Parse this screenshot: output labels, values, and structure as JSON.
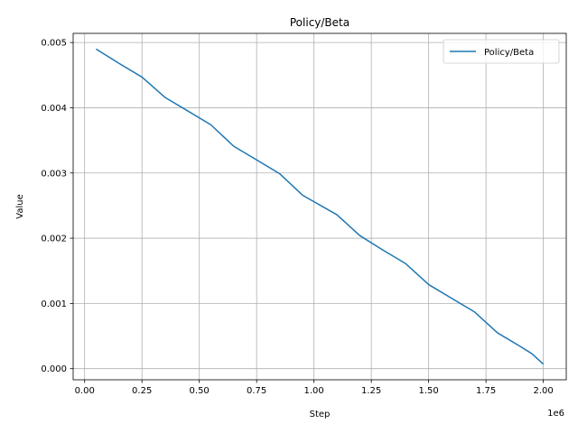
{
  "chart_data": {
    "type": "line",
    "title": "Policy/Beta",
    "xlabel": "Step",
    "ylabel": "Value",
    "x_offset_label": "1e6",
    "xlim": [
      -0.05,
      2.1
    ],
    "ylim": [
      -0.00017,
      0.00514
    ],
    "x_ticks": [
      0.0,
      0.25,
      0.5,
      0.75,
      1.0,
      1.25,
      1.5,
      1.75,
      2.0
    ],
    "x_tick_labels": [
      "0.00",
      "0.25",
      "0.50",
      "0.75",
      "1.00",
      "1.25",
      "1.50",
      "1.75",
      "2.00"
    ],
    "y_ticks": [
      0.0,
      0.001,
      0.002,
      0.003,
      0.004,
      0.005
    ],
    "y_tick_labels": [
      "0.000",
      "0.001",
      "0.002",
      "0.003",
      "0.004",
      "0.005"
    ],
    "grid": true,
    "legend_position": "top-right",
    "series": [
      {
        "name": "Policy/Beta",
        "color": "#1f77b4",
        "x": [
          0.05,
          0.15,
          0.25,
          0.35,
          0.45,
          0.55,
          0.65,
          0.75,
          0.85,
          0.95,
          1.05,
          1.1,
          1.2,
          1.3,
          1.4,
          1.5,
          1.6,
          1.7,
          1.8,
          1.9,
          1.95,
          2.0
        ],
        "y": [
          0.0049,
          0.00468,
          0.00447,
          0.00416,
          0.00395,
          0.00374,
          0.00341,
          0.0032,
          0.00299,
          0.00266,
          0.00246,
          0.00236,
          0.00204,
          0.00182,
          0.00161,
          0.00129,
          0.00108,
          0.00087,
          0.00055,
          0.00034,
          0.00023,
          7e-05
        ]
      }
    ]
  }
}
